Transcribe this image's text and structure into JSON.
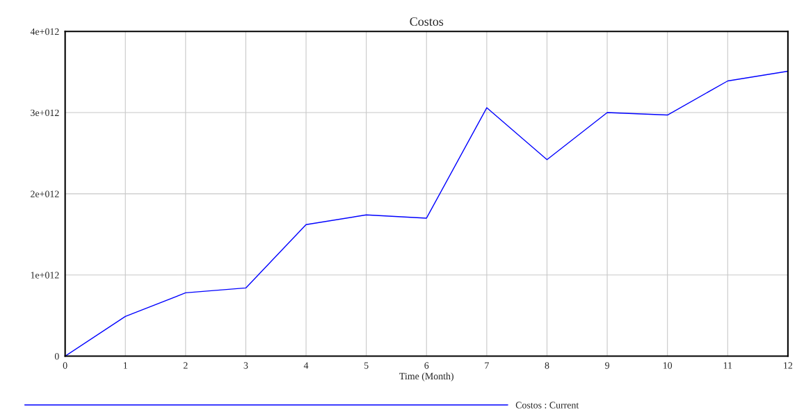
{
  "chart_data": {
    "type": "line",
    "title": "Costos",
    "xlabel": "Time (Month)",
    "x": [
      0,
      1,
      2,
      3,
      4,
      5,
      6,
      7,
      8,
      9,
      10,
      11,
      12
    ],
    "series": [
      {
        "name": "Costos : Current",
        "color": "#0000ff",
        "values": [
          0,
          490000000000.0,
          780000000000.0,
          840000000000.0,
          1620000000000.0,
          1740000000000.0,
          1700000000000.0,
          3060000000000.0,
          2420000000000.0,
          3000000000000.0,
          2970000000000.0,
          3390000000000.0,
          3510000000000.0
        ]
      }
    ],
    "xlim": [
      0,
      12
    ],
    "xticks": [
      0,
      1,
      2,
      3,
      4,
      5,
      6,
      7,
      8,
      9,
      10,
      11,
      12
    ],
    "ylim": [
      0,
      4000000000000.0
    ],
    "yticks": [
      0,
      {
        "value": 1000000000000.0,
        "label": "1e+012"
      },
      {
        "value": 2000000000000.0,
        "label": "2e+012"
      },
      {
        "value": 3000000000000.0,
        "label": "3e+012"
      },
      {
        "value": 4000000000000.0,
        "label": "4e+012"
      }
    ],
    "grid": true,
    "legend": "bottom",
    "marker": "none",
    "line_style": "solid"
  }
}
